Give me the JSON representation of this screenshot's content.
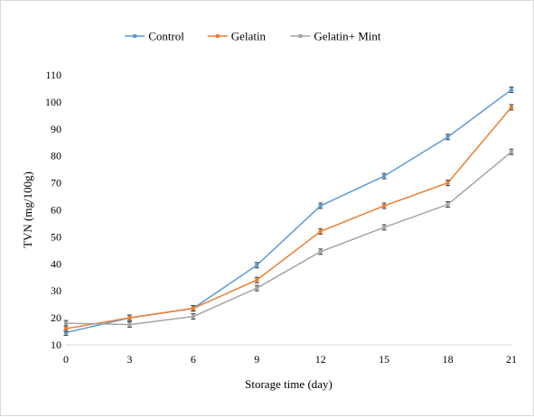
{
  "chart_data": {
    "type": "line",
    "title": "",
    "xlabel": "Storage time (day)",
    "ylabel": "TVN (mg/100g)",
    "x": [
      0,
      3,
      6,
      9,
      12,
      15,
      18,
      21
    ],
    "x_tick_labels": [
      "0",
      "3",
      "6",
      "9",
      "12",
      "15",
      "18",
      "21"
    ],
    "ylim": [
      10,
      110
    ],
    "y_ticks": [
      10,
      20,
      30,
      40,
      50,
      60,
      70,
      80,
      90,
      100,
      110
    ],
    "y_tick_labels": [
      "10",
      "20",
      "30",
      "40",
      "50",
      "60",
      "70",
      "80",
      "90",
      "100",
      "110"
    ],
    "grid": false,
    "legend_position": "top",
    "series": [
      {
        "name": "Control",
        "color": "#5b9bd5",
        "values": [
          14.5,
          20,
          23.5,
          39.5,
          61.5,
          72.5,
          87,
          104.5
        ]
      },
      {
        "name": "Gelatin",
        "color": "#ed7d31",
        "values": [
          16,
          20,
          23.5,
          34,
          52,
          61.5,
          70,
          98
        ]
      },
      {
        "name": "Gelatin+ Mint",
        "color": "#a5a5a5",
        "values": [
          18,
          17.5,
          20.5,
          31,
          44.5,
          53.5,
          62,
          81.5
        ]
      }
    ]
  }
}
